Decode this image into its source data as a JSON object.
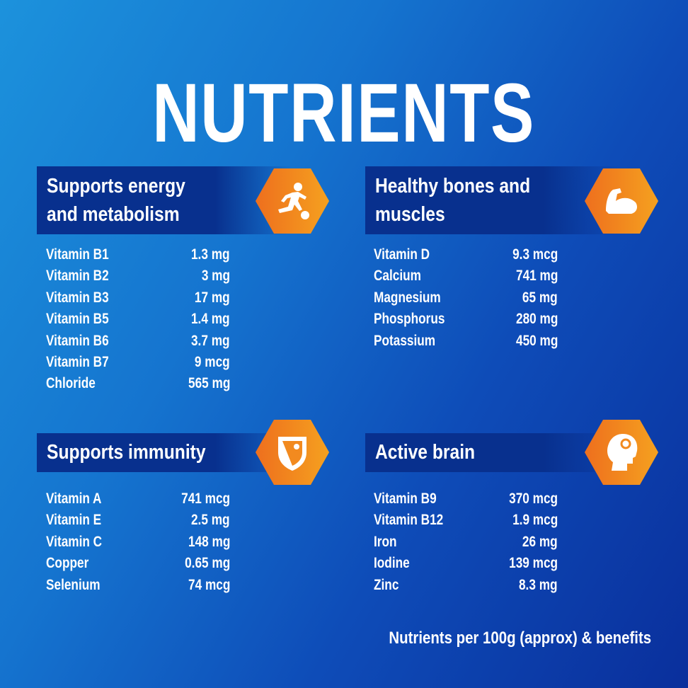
{
  "title": "NUTRIENTS",
  "sections": [
    {
      "heading_line1": "Supports energy",
      "heading_line2": "and metabolism",
      "icon": "running-soccer-icon",
      "items": [
        {
          "name": "Vitamin B1",
          "value": "1.3 mg"
        },
        {
          "name": "Vitamin B2",
          "value": "3 mg"
        },
        {
          "name": "Vitamin B3",
          "value": "17 mg"
        },
        {
          "name": "Vitamin B5",
          "value": "1.4 mg"
        },
        {
          "name": "Vitamin B6",
          "value": "3.7 mg"
        },
        {
          "name": "Vitamin B7",
          "value": "9 mcg"
        },
        {
          "name": "Chloride",
          "value": "565 mg"
        }
      ]
    },
    {
      "heading_line1": "Healthy bones and",
      "heading_line2": "muscles",
      "icon": "flexed-arm-icon",
      "items": [
        {
          "name": "Vitamin D",
          "value": "9.3 mcg"
        },
        {
          "name": "Calcium",
          "value": "741 mg"
        },
        {
          "name": "Magnesium",
          "value": "65 mg"
        },
        {
          "name": "Phosphorus",
          "value": "280 mg"
        },
        {
          "name": "Potassium",
          "value": "450 mg"
        }
      ]
    },
    {
      "heading_line1": "Supports immunity",
      "icon": "shield-virus-icon",
      "items": [
        {
          "name": "Vitamin A",
          "value": "741 mcg"
        },
        {
          "name": "Vitamin E",
          "value": "2.5 mg"
        },
        {
          "name": "Vitamin C",
          "value": "148 mg"
        },
        {
          "name": "Copper",
          "value": "0.65 mg"
        },
        {
          "name": "Selenium",
          "value": "74 mcg"
        }
      ]
    },
    {
      "heading_line1": "Active brain",
      "icon": "head-gear-icon",
      "items": [
        {
          "name": "Vitamin B9",
          "value": "370 mcg"
        },
        {
          "name": "Vitamin B12",
          "value": "1.9 mcg"
        },
        {
          "name": "Iron",
          "value": "26 mg"
        },
        {
          "name": "Iodine",
          "value": "139 mcg"
        },
        {
          "name": "Zinc",
          "value": "8.3 mg"
        }
      ]
    }
  ],
  "colors": {
    "accent": "#f28a1f",
    "banner": "#08308e"
  },
  "footer": "Nutrients per 100g (approx) & benefits"
}
